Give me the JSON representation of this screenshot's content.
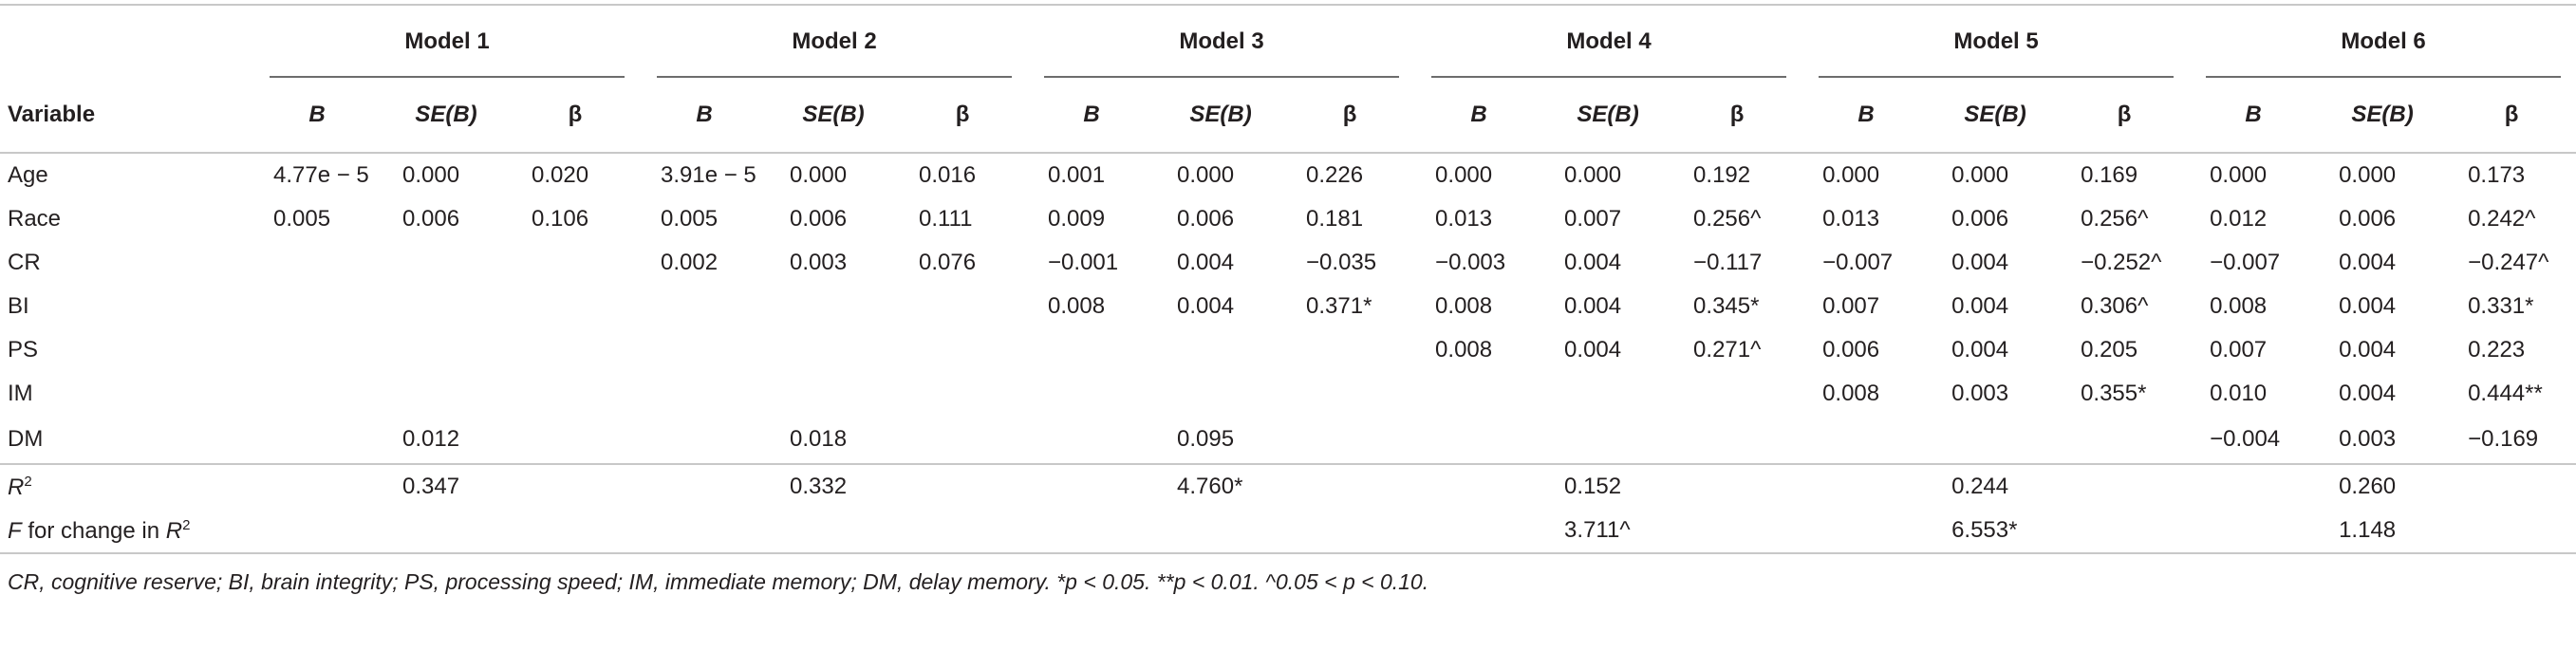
{
  "table": {
    "models": [
      "Model 1",
      "Model 2",
      "Model 3",
      "Model 4",
      "Model 5",
      "Model 6"
    ],
    "columns": [
      "Variable",
      "B",
      "SE(B)",
      "β"
    ],
    "rows": [
      {
        "label": [
          {
            "text": "Age"
          }
        ],
        "cells": [
          "4.77e − 5",
          "0.000",
          "0.020",
          "3.91e − 5",
          "0.000",
          "0.016",
          "0.001",
          "0.000",
          "0.226",
          "0.000",
          "0.000",
          "0.192",
          "0.000",
          "0.000",
          "0.169",
          "0.000",
          "0.000",
          "0.173"
        ]
      },
      {
        "label": [
          {
            "text": "Race"
          }
        ],
        "cells": [
          "0.005",
          "0.006",
          "0.106",
          "0.005",
          "0.006",
          "0.111",
          "0.009",
          "0.006",
          "0.181",
          "0.013",
          "0.007",
          "0.256^",
          "0.013",
          "0.006",
          "0.256^",
          "0.012",
          "0.006",
          "0.242^"
        ]
      },
      {
        "label": [
          {
            "text": "CR"
          }
        ],
        "cells": [
          null,
          null,
          null,
          "0.002",
          "0.003",
          "0.076",
          "−0.001",
          "0.004",
          "−0.035",
          "−0.003",
          "0.004",
          "−0.117",
          "−0.007",
          "0.004",
          "−0.252^",
          "−0.007",
          "0.004",
          "−0.247^"
        ]
      },
      {
        "label": [
          {
            "text": "BI"
          }
        ],
        "cells": [
          null,
          null,
          null,
          null,
          null,
          null,
          "0.008",
          "0.004",
          "0.371*",
          "0.008",
          "0.004",
          "0.345*",
          "0.007",
          "0.004",
          "0.306^",
          "0.008",
          "0.004",
          "0.331*"
        ]
      },
      {
        "label": [
          {
            "text": "PS"
          }
        ],
        "cells": [
          null,
          null,
          null,
          null,
          null,
          null,
          null,
          null,
          null,
          "0.008",
          "0.004",
          "0.271^",
          "0.006",
          "0.004",
          "0.205",
          "0.007",
          "0.004",
          "0.223"
        ]
      },
      {
        "label": [
          {
            "text": "IM"
          }
        ],
        "cells": [
          null,
          null,
          null,
          null,
          null,
          null,
          null,
          null,
          null,
          null,
          null,
          null,
          "0.008",
          "0.003",
          "0.355*",
          "0.010",
          "0.004",
          "0.444**"
        ]
      },
      {
        "label": [
          {
            "text": "DM"
          }
        ],
        "cells": [
          null,
          "0.012",
          null,
          null,
          "0.018",
          null,
          null,
          "0.095",
          null,
          null,
          null,
          null,
          null,
          null,
          null,
          "−0.004",
          "0.003",
          "−0.169"
        ]
      },
      {
        "label": [
          {
            "text": "R",
            "style": "italic"
          },
          {
            "text": "2",
            "style": "sup"
          }
        ],
        "cells": [
          null,
          "0.347",
          null,
          null,
          "0.332",
          null,
          null,
          "4.760*",
          null,
          null,
          "0.152",
          null,
          null,
          "0.244",
          null,
          null,
          "0.260",
          null
        ]
      },
      {
        "label": [
          {
            "text": "F",
            "style": "italic"
          },
          {
            "text": " for change in "
          },
          {
            "text": "R",
            "style": "italic"
          },
          {
            "text": "2",
            "style": "sup"
          }
        ],
        "cells": [
          null,
          null,
          null,
          null,
          null,
          null,
          null,
          null,
          null,
          null,
          "3.711^",
          null,
          null,
          "6.553*",
          null,
          null,
          "1.148",
          null
        ]
      }
    ],
    "footnote": "CR, cognitive reserve; BI, brain integrity; PS, processing speed; IM, immediate memory; DM, delay memory. *p < 0.05. **p < 0.01. ^0.05 < p < 0.10."
  }
}
